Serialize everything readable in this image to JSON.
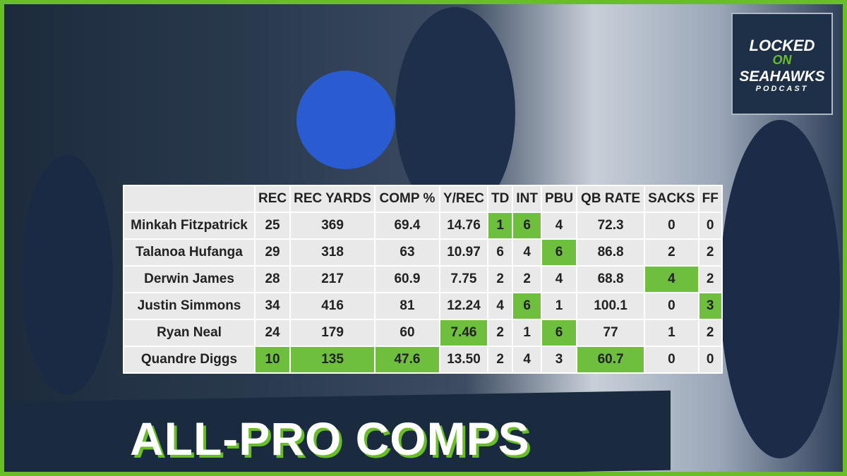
{
  "logo": {
    "line1": "LOCKED",
    "line2": "ON",
    "line3": "SEAHAWKS",
    "line4": "PODCAST"
  },
  "table": {
    "columns": [
      "",
      "REC",
      "REC YARDS",
      "COMP %",
      "Y/REC",
      "TD",
      "INT",
      "PBU",
      "QB RATE",
      "SACKS",
      "FF"
    ],
    "rows": [
      [
        "Minkah Fitzpatrick",
        "25",
        "369",
        "69.4",
        "14.76",
        "1",
        "6",
        "4",
        "72.3",
        "0",
        "0"
      ],
      [
        "Talanoa Hufanga",
        "29",
        "318",
        "63",
        "10.97",
        "6",
        "4",
        "6",
        "86.8",
        "2",
        "2"
      ],
      [
        "Derwin James",
        "28",
        "217",
        "60.9",
        "7.75",
        "2",
        "2",
        "4",
        "68.8",
        "4",
        "2"
      ],
      [
        "Justin Simmons",
        "34",
        "416",
        "81",
        "12.24",
        "4",
        "6",
        "1",
        "100.1",
        "0",
        "3"
      ],
      [
        "Ryan Neal",
        "24",
        "179",
        "60",
        "7.46",
        "2",
        "1",
        "6",
        "77",
        "1",
        "2"
      ],
      [
        "Quandre Diggs",
        "10",
        "135",
        "47.6",
        "13.50",
        "2",
        "4",
        "3",
        "60.7",
        "0",
        "0"
      ]
    ],
    "highlighted": [
      [
        0,
        5
      ],
      [
        0,
        6
      ],
      [
        1,
        7
      ],
      [
        2,
        9
      ],
      [
        3,
        6
      ],
      [
        3,
        10
      ],
      [
        4,
        4
      ],
      [
        4,
        7
      ],
      [
        5,
        1
      ],
      [
        5,
        2
      ],
      [
        5,
        3
      ],
      [
        5,
        8
      ]
    ],
    "highlight_color": "#6fbf3f"
  },
  "title": "ALL-PRO COMPS"
}
